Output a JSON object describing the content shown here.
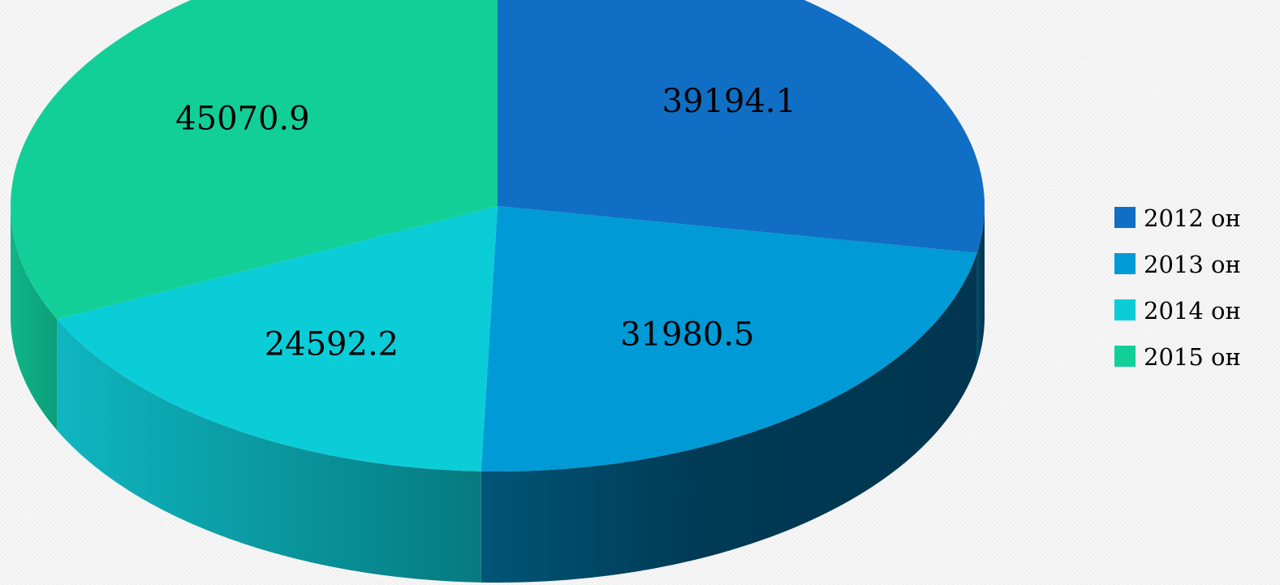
{
  "chart_data": {
    "type": "pie",
    "style": "3d",
    "categories": [
      "2012 он",
      "2013 он",
      "2014 он",
      "2015 он"
    ],
    "values": [
      39194.1,
      31980.5,
      24592.2,
      45070.9
    ],
    "value_labels": [
      "39194.1",
      "31980.5",
      "24592.2",
      "45070.9"
    ],
    "colors": [
      "#106fc4",
      "#009ad6",
      "#0bcdd8",
      "#12cf98"
    ],
    "legend_position": "right",
    "title": ""
  }
}
